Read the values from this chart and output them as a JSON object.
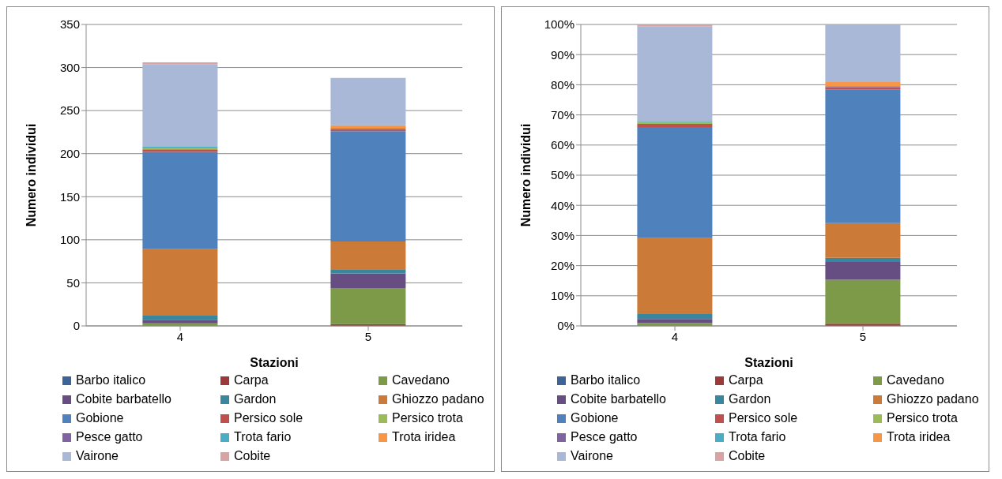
{
  "chart_data": [
    {
      "type": "bar",
      "stacked": true,
      "categories": [
        "4",
        "5"
      ],
      "xlabel": "Stazioni",
      "ylabel": "Numero individui",
      "ylim": [
        0,
        350
      ],
      "yticks": [
        0,
        50,
        100,
        150,
        200,
        250,
        300,
        350
      ],
      "grid": "y",
      "legend": "bottom",
      "series": [
        {
          "name": "Barbo italico",
          "color": "#3d6496",
          "values": [
            0,
            0
          ]
        },
        {
          "name": "Carpa",
          "color": "#9b3a38",
          "values": [
            0,
            2
          ]
        },
        {
          "name": "Cavedano",
          "color": "#7d9a48",
          "values": [
            3,
            42
          ]
        },
        {
          "name": "Cobite barbatello",
          "color": "#664d82",
          "values": [
            4,
            17
          ]
        },
        {
          "name": "Gardon",
          "color": "#39879f",
          "values": [
            5,
            4
          ]
        },
        {
          "name": "Ghiozzo padano",
          "color": "#cb7a37",
          "values": [
            77,
            33
          ]
        },
        {
          "name": "Gobione",
          "color": "#4f81bd",
          "values": [
            113,
            128
          ]
        },
        {
          "name": "Persico sole",
          "color": "#c0504d",
          "values": [
            3,
            2
          ]
        },
        {
          "name": "Persico trota",
          "color": "#9bbb59",
          "values": [
            2,
            0
          ]
        },
        {
          "name": "Pesce gatto",
          "color": "#8064a2",
          "values": [
            0,
            1
          ]
        },
        {
          "name": "Trota fario",
          "color": "#4bacc6",
          "values": [
            1,
            0
          ]
        },
        {
          "name": "Trota iridea",
          "color": "#f79646",
          "values": [
            0,
            4
          ]
        },
        {
          "name": "Vairone",
          "color": "#a9b8d6",
          "values": [
            96,
            55
          ]
        },
        {
          "name": "Cobite",
          "color": "#d9a3a3",
          "values": [
            2,
            0
          ]
        }
      ]
    },
    {
      "type": "bar",
      "stacked": true,
      "categories": [
        "4",
        "5"
      ],
      "xlabel": "Stazioni",
      "ylabel": "Numero individui",
      "ylim": [
        0,
        100
      ],
      "yticks": [
        {
          "value": 0,
          "label": "0%"
        },
        {
          "value": 10,
          "label": "10%"
        },
        {
          "value": 20,
          "label": "20%"
        },
        {
          "value": 30,
          "label": "30%"
        },
        {
          "value": 40,
          "label": "40%"
        },
        {
          "value": 50,
          "label": "50%"
        },
        {
          "value": 60,
          "label": "60%"
        },
        {
          "value": 70,
          "label": "70%"
        },
        {
          "value": 80,
          "label": "80%"
        },
        {
          "value": 90,
          "label": "90%"
        },
        {
          "value": 100,
          "label": "100%"
        }
      ],
      "grid": "y",
      "legend": "bottom",
      "series": [
        {
          "name": "Barbo italico",
          "color": "#3d6496",
          "values": [
            0,
            0
          ]
        },
        {
          "name": "Carpa",
          "color": "#9b3a38",
          "values": [
            0,
            0.7
          ]
        },
        {
          "name": "Cavedano",
          "color": "#7d9a48",
          "values": [
            1.0,
            14.6
          ]
        },
        {
          "name": "Cobite barbatello",
          "color": "#664d82",
          "values": [
            1.3,
            5.9
          ]
        },
        {
          "name": "Gardon",
          "color": "#39879f",
          "values": [
            1.6,
            1.4
          ]
        },
        {
          "name": "Ghiozzo padano",
          "color": "#cb7a37",
          "values": [
            25.2,
            11.5
          ]
        },
        {
          "name": "Gobione",
          "color": "#4f81bd",
          "values": [
            36.9,
            44.4
          ]
        },
        {
          "name": "Persico sole",
          "color": "#c0504d",
          "values": [
            1.0,
            0.7
          ]
        },
        {
          "name": "Persico trota",
          "color": "#9bbb59",
          "values": [
            0.7,
            0
          ]
        },
        {
          "name": "Pesce gatto",
          "color": "#8064a2",
          "values": [
            0,
            0.3
          ]
        },
        {
          "name": "Trota fario",
          "color": "#4bacc6",
          "values": [
            0.3,
            0
          ]
        },
        {
          "name": "Trota iridea",
          "color": "#f79646",
          "values": [
            0,
            1.4
          ]
        },
        {
          "name": "Vairone",
          "color": "#a9b8d6",
          "values": [
            31.3,
            19.1
          ]
        },
        {
          "name": "Cobite",
          "color": "#d9a3a3",
          "values": [
            0.7,
            0
          ]
        }
      ]
    }
  ]
}
